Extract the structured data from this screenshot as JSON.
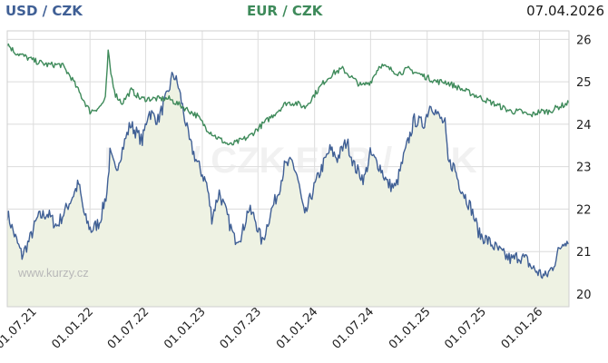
{
  "header": {
    "usd_label": "USD / CZK",
    "eur_label": "EUR / CZK",
    "date": "07.04.2026"
  },
  "watermark": {
    "center": "USD / CZK EUR / CZK",
    "site": "www.kurzy.cz"
  },
  "colors": {
    "usd_line": "#3f5f95",
    "eur_line": "#3e8a5a",
    "area_fill": "#eef2e3",
    "grid": "#dcdcdc"
  },
  "chart_data": {
    "type": "line",
    "x_ticks": [
      "01.07.21",
      "01.01.22",
      "01.07.22",
      "01.01.23",
      "01.07.23",
      "01.01.24",
      "01.07.24",
      "01.01.25",
      "01.07.25",
      "01.01.26"
    ],
    "y_ticks": [
      20,
      21,
      22,
      23,
      24,
      25,
      26
    ],
    "ylim": [
      19.7,
      26.2
    ],
    "xlim": [
      "2021-04-07",
      "2026-04-07"
    ],
    "grid": true,
    "series": [
      {
        "name": "USD / CZK",
        "color": "#3f5f95",
        "fill": "#eef2e3",
        "points": [
          [
            "2021-04-07",
            21.9
          ],
          [
            "2021-04-30",
            21.4
          ],
          [
            "2021-05-25",
            20.9
          ],
          [
            "2021-06-20",
            21.3
          ],
          [
            "2021-07-15",
            21.8
          ],
          [
            "2021-08-15",
            21.9
          ],
          [
            "2021-09-15",
            21.6
          ],
          [
            "2021-10-15",
            22.0
          ],
          [
            "2021-11-05",
            22.3
          ],
          [
            "2021-11-25",
            22.6
          ],
          [
            "2021-12-15",
            21.8
          ],
          [
            "2022-01-05",
            21.5
          ],
          [
            "2022-02-01",
            21.7
          ],
          [
            "2022-02-25",
            22.4
          ],
          [
            "2022-03-07",
            23.3
          ],
          [
            "2022-03-25",
            22.9
          ],
          [
            "2022-04-20",
            23.5
          ],
          [
            "2022-05-12",
            24.0
          ],
          [
            "2022-06-01",
            23.8
          ],
          [
            "2022-06-20",
            23.6
          ],
          [
            "2022-07-10",
            24.3
          ],
          [
            "2022-08-10",
            24.1
          ],
          [
            "2022-09-10",
            24.7
          ],
          [
            "2022-09-28",
            25.2
          ],
          [
            "2022-10-15",
            24.9
          ],
          [
            "2022-11-01",
            24.3
          ],
          [
            "2022-11-20",
            23.6
          ],
          [
            "2022-12-15",
            23.1
          ],
          [
            "2023-01-15",
            22.6
          ],
          [
            "2023-02-01",
            21.8
          ],
          [
            "2023-02-25",
            22.4
          ],
          [
            "2023-03-20",
            21.9
          ],
          [
            "2023-04-15",
            21.3
          ],
          [
            "2023-05-10",
            21.4
          ],
          [
            "2023-05-30",
            22.0
          ],
          [
            "2023-06-20",
            21.8
          ],
          [
            "2023-07-15",
            21.2
          ],
          [
            "2023-08-10",
            21.9
          ],
          [
            "2023-09-05",
            22.4
          ],
          [
            "2023-09-25",
            23.0
          ],
          [
            "2023-10-20",
            23.1
          ],
          [
            "2023-11-05",
            22.8
          ],
          [
            "2023-11-30",
            21.8
          ],
          [
            "2023-12-20",
            22.3
          ],
          [
            "2024-01-20",
            22.9
          ],
          [
            "2024-02-20",
            23.4
          ],
          [
            "2024-03-15",
            23.2
          ],
          [
            "2024-04-15",
            23.6
          ],
          [
            "2024-05-10",
            23.0
          ],
          [
            "2024-06-10",
            22.7
          ],
          [
            "2024-06-30",
            23.3
          ],
          [
            "2024-08-01",
            23.0
          ],
          [
            "2024-08-25",
            22.6
          ],
          [
            "2024-09-20",
            22.5
          ],
          [
            "2024-10-20",
            23.3
          ],
          [
            "2024-11-20",
            24.1
          ],
          [
            "2024-12-20",
            24.0
          ],
          [
            "2025-01-13",
            24.5
          ],
          [
            "2025-02-05",
            24.2
          ],
          [
            "2025-02-28",
            24.0
          ],
          [
            "2025-03-10",
            23.1
          ],
          [
            "2025-03-30",
            23.0
          ],
          [
            "2025-04-15",
            22.6
          ],
          [
            "2025-05-05",
            22.3
          ],
          [
            "2025-05-25",
            22.0
          ],
          [
            "2025-06-20",
            21.4
          ],
          [
            "2025-07-10",
            21.3
          ],
          [
            "2025-08-10",
            21.1
          ],
          [
            "2025-09-10",
            20.9
          ],
          [
            "2025-10-05",
            20.8
          ],
          [
            "2025-10-25",
            20.9
          ],
          [
            "2025-11-20",
            20.8
          ],
          [
            "2025-12-10",
            20.6
          ],
          [
            "2025-12-31",
            20.5
          ],
          [
            "2026-01-20",
            20.4
          ],
          [
            "2026-02-10",
            20.6
          ],
          [
            "2026-03-10",
            21.1
          ],
          [
            "2026-03-25",
            21.3
          ],
          [
            "2026-04-07",
            21.2
          ]
        ]
      },
      {
        "name": "EUR / CZK",
        "color": "#3e8a5a",
        "fill": null,
        "points": [
          [
            "2021-04-07",
            25.9
          ],
          [
            "2021-05-01",
            25.7
          ],
          [
            "2021-06-01",
            25.6
          ],
          [
            "2021-07-01",
            25.5
          ],
          [
            "2021-08-15",
            25.4
          ],
          [
            "2021-10-01",
            25.4
          ],
          [
            "2021-11-01",
            25.1
          ],
          [
            "2021-12-01",
            24.7
          ],
          [
            "2022-01-01",
            24.3
          ],
          [
            "2022-02-01",
            24.4
          ],
          [
            "2022-02-20",
            24.6
          ],
          [
            "2022-03-01",
            25.7
          ],
          [
            "2022-03-10",
            25.2
          ],
          [
            "2022-03-25",
            24.7
          ],
          [
            "2022-04-15",
            24.5
          ],
          [
            "2022-05-15",
            24.8
          ],
          [
            "2022-06-15",
            24.6
          ],
          [
            "2022-07-15",
            24.6
          ],
          [
            "2022-09-15",
            24.6
          ],
          [
            "2022-11-01",
            24.4
          ],
          [
            "2022-12-15",
            24.2
          ],
          [
            "2023-01-15",
            23.9
          ],
          [
            "2023-02-15",
            23.7
          ],
          [
            "2023-04-01",
            23.5
          ],
          [
            "2023-05-01",
            23.6
          ],
          [
            "2023-06-01",
            23.7
          ],
          [
            "2023-07-01",
            23.9
          ],
          [
            "2023-08-01",
            24.1
          ],
          [
            "2023-09-01",
            24.3
          ],
          [
            "2023-10-01",
            24.5
          ],
          [
            "2023-11-01",
            24.5
          ],
          [
            "2023-12-01",
            24.4
          ],
          [
            "2024-01-01",
            24.7
          ],
          [
            "2024-02-01",
            25.0
          ],
          [
            "2024-03-01",
            25.2
          ],
          [
            "2024-04-01",
            25.3
          ],
          [
            "2024-05-01",
            25.1
          ],
          [
            "2024-06-01",
            24.9
          ],
          [
            "2024-07-01",
            25.0
          ],
          [
            "2024-08-01",
            25.4
          ],
          [
            "2024-09-01",
            25.3
          ],
          [
            "2024-10-01",
            25.2
          ],
          [
            "2024-11-01",
            25.3
          ],
          [
            "2024-12-01",
            25.2
          ],
          [
            "2025-01-01",
            25.1
          ],
          [
            "2025-02-01",
            25.0
          ],
          [
            "2025-03-01",
            25.0
          ],
          [
            "2025-04-01",
            24.9
          ],
          [
            "2025-05-01",
            24.8
          ],
          [
            "2025-06-01",
            24.7
          ],
          [
            "2025-07-01",
            24.6
          ],
          [
            "2025-08-01",
            24.5
          ],
          [
            "2025-09-01",
            24.4
          ],
          [
            "2025-10-01",
            24.3
          ],
          [
            "2025-11-01",
            24.3
          ],
          [
            "2025-12-01",
            24.2
          ],
          [
            "2026-01-01",
            24.3
          ],
          [
            "2026-02-01",
            24.3
          ],
          [
            "2026-03-01",
            24.4
          ],
          [
            "2026-04-07",
            24.5
          ]
        ]
      }
    ]
  }
}
